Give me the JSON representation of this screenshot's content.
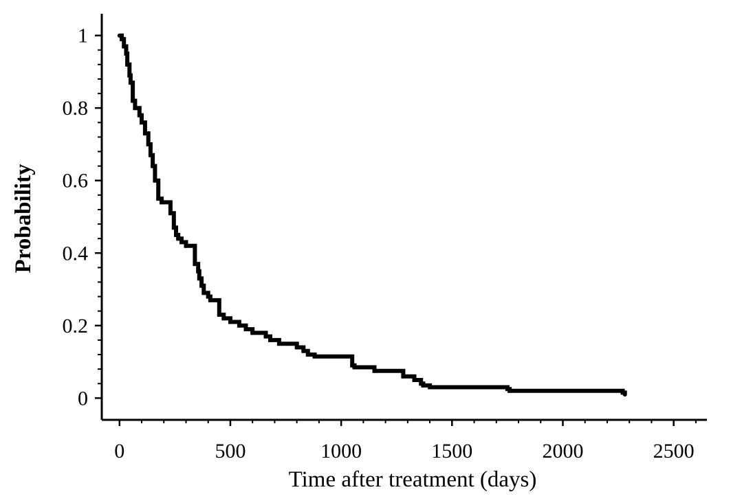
{
  "chart_data": {
    "type": "line",
    "style": "step",
    "title": "",
    "xlabel": "Time after treatment (days)",
    "ylabel": "Probability",
    "xlim": [
      -80,
      2650
    ],
    "ylim": [
      -0.06,
      1.06
    ],
    "xticks": [
      0,
      500,
      1000,
      1500,
      2000,
      2500
    ],
    "xtick_labels": [
      "0",
      "500",
      "1000",
      "1500",
      "2000",
      "2500"
    ],
    "yticks": [
      0,
      0.2,
      0.4,
      0.6,
      0.8,
      1
    ],
    "ytick_labels": [
      "0",
      "0.2",
      "0.4",
      "0.6",
      "0.8",
      "1"
    ],
    "grid": false,
    "legend": "none",
    "line_color": "#000000",
    "series": [
      {
        "x": [
          0,
          10,
          20,
          30,
          35,
          45,
          50,
          60,
          70,
          90,
          100,
          115,
          130,
          140,
          150,
          160,
          175,
          190,
          200,
          230,
          245,
          255,
          265,
          280,
          300,
          340,
          355,
          360,
          370,
          380,
          400,
          410,
          450,
          470,
          500,
          540,
          570,
          600,
          660,
          680,
          720,
          800,
          830,
          850,
          880,
          1050,
          1060,
          1150,
          1280,
          1330,
          1360,
          1370,
          1400,
          1750,
          1760,
          2270,
          2280
        ],
        "y": [
          1.0,
          0.99,
          0.97,
          0.95,
          0.92,
          0.89,
          0.87,
          0.82,
          0.8,
          0.78,
          0.76,
          0.73,
          0.7,
          0.67,
          0.64,
          0.6,
          0.55,
          0.54,
          0.54,
          0.51,
          0.47,
          0.45,
          0.44,
          0.43,
          0.42,
          0.37,
          0.35,
          0.33,
          0.31,
          0.29,
          0.28,
          0.27,
          0.23,
          0.22,
          0.21,
          0.2,
          0.19,
          0.18,
          0.17,
          0.16,
          0.15,
          0.14,
          0.13,
          0.12,
          0.115,
          0.09,
          0.085,
          0.075,
          0.06,
          0.05,
          0.04,
          0.035,
          0.03,
          0.025,
          0.02,
          0.015,
          0.01
        ]
      }
    ]
  }
}
